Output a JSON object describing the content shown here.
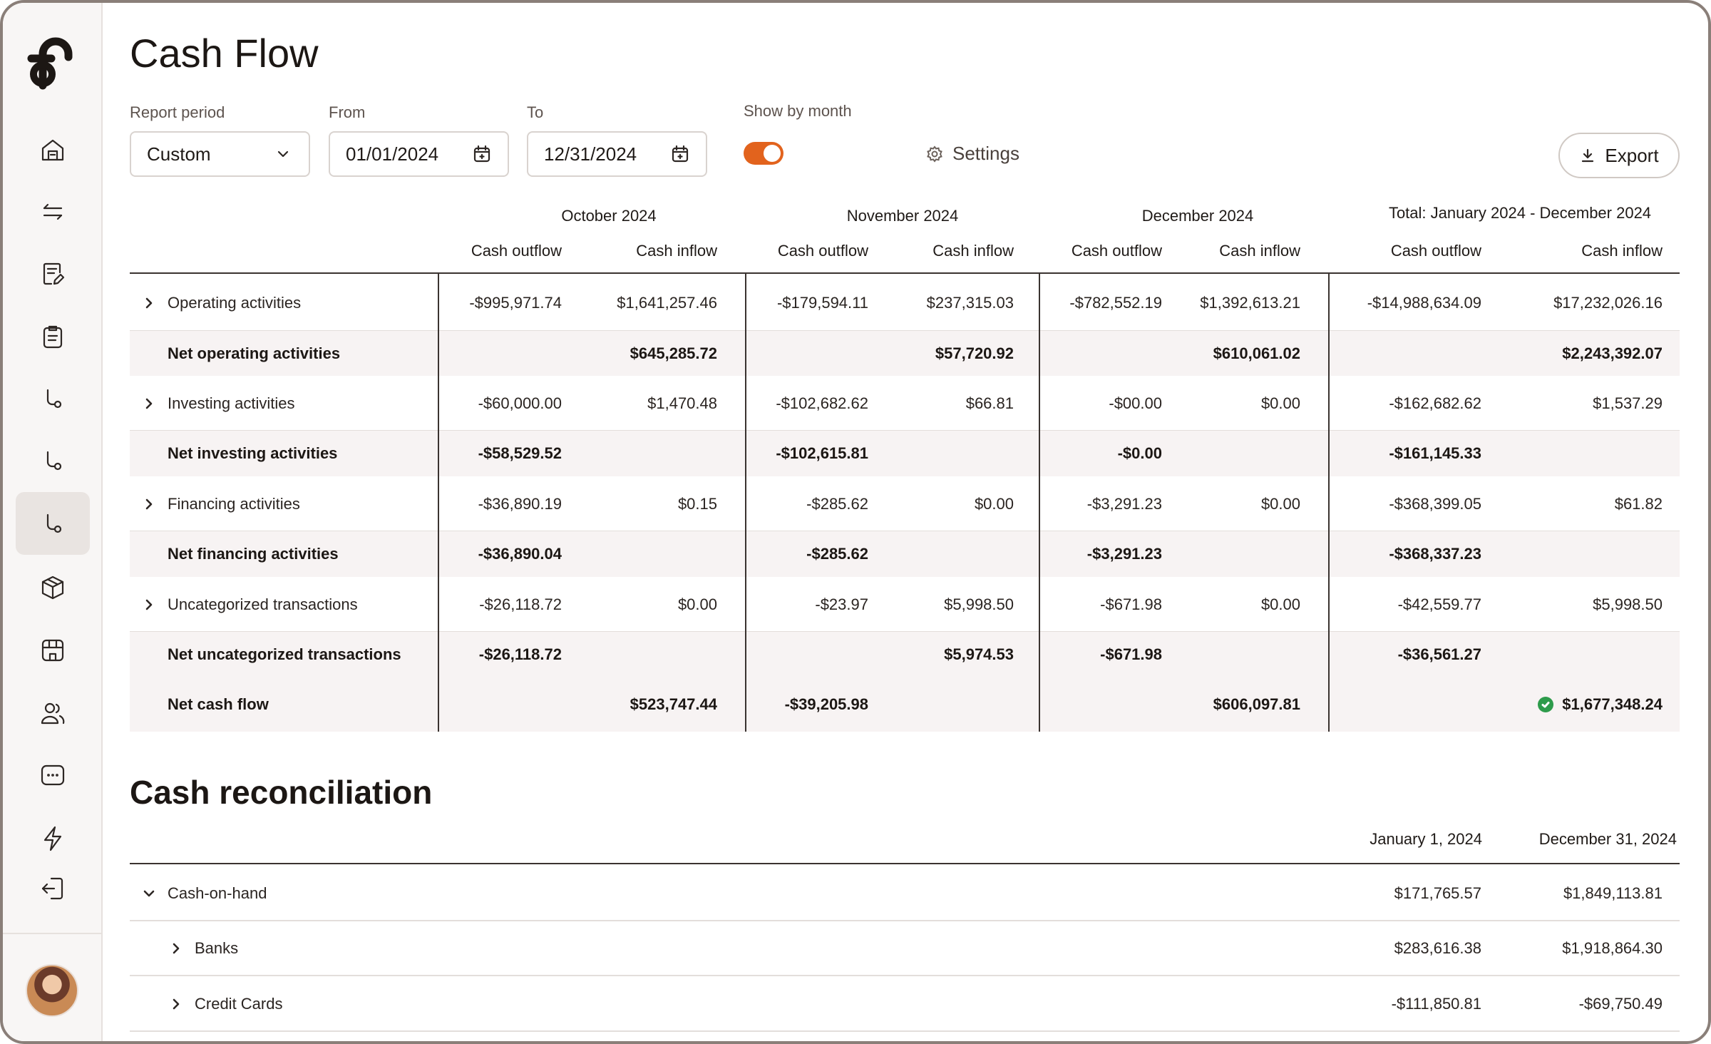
{
  "page": {
    "title": "Cash Flow"
  },
  "filters": {
    "report_period_label": "Report period",
    "report_period_value": "Custom",
    "from_label": "From",
    "from_value": "01/01/2024",
    "to_label": "To",
    "to_value": "12/31/2024",
    "show_by_month_label": "Show by month",
    "show_by_month_on": true
  },
  "toolbar": {
    "settings_label": "Settings",
    "export_label": "Export"
  },
  "colors": {
    "accent": "#e2631d",
    "success": "#2e9b4b"
  },
  "sidebar": {
    "items": [
      {
        "icon": "home-icon"
      },
      {
        "icon": "transfer-arrows-icon"
      },
      {
        "icon": "receipt-edit-icon"
      },
      {
        "icon": "clipboard-icon"
      },
      {
        "icon": "flow-icon"
      },
      {
        "icon": "flow-icon"
      },
      {
        "icon": "flow-icon",
        "active": true
      },
      {
        "icon": "box-icon"
      },
      {
        "icon": "storefront-icon"
      },
      {
        "icon": "users-icon"
      },
      {
        "icon": "chat-bubble-icon"
      },
      {
        "icon": "lightning-icon"
      },
      {
        "icon": "logout-icon"
      }
    ]
  },
  "cash_flow": {
    "groups": [
      "October 2024",
      "November 2024",
      "December 2024",
      "Total: January 2024 - December 2024"
    ],
    "col_outflow": "Cash outflow",
    "col_inflow": "Cash inflow",
    "rows": [
      {
        "label": "Operating activities",
        "expandable": true,
        "values": [
          "-$995,971.74",
          "$1,641,257.46",
          "-$179,594.11",
          "$237,315.03",
          "-$782,552.19",
          "$1,392,613.21",
          "-$14,988,634.09",
          "$17,232,026.16"
        ]
      },
      {
        "label": "Net operating activities",
        "net": true,
        "values": [
          "",
          "$645,285.72",
          "",
          "$57,720.92",
          "",
          "$610,061.02",
          "",
          "$2,243,392.07"
        ]
      },
      {
        "label": "Investing activities",
        "expandable": true,
        "values": [
          "-$60,000.00",
          "$1,470.48",
          "-$102,682.62",
          "$66.81",
          "-$00.00",
          "$0.00",
          "-$162,682.62",
          "$1,537.29"
        ]
      },
      {
        "label": "Net investing activities",
        "net": true,
        "values": [
          "-$58,529.52",
          "",
          "-$102,615.81",
          "",
          "-$0.00",
          "",
          "-$161,145.33",
          ""
        ]
      },
      {
        "label": "Financing activities",
        "expandable": true,
        "values": [
          "-$36,890.19",
          "$0.15",
          "-$285.62",
          "$0.00",
          "-$3,291.23",
          "$0.00",
          "-$368,399.05",
          "$61.82"
        ]
      },
      {
        "label": "Net financing activities",
        "net": true,
        "values": [
          "-$36,890.04",
          "",
          "-$285.62",
          "",
          "-$3,291.23",
          "",
          "-$368,337.23",
          ""
        ]
      },
      {
        "label": "Uncategorized transactions",
        "expandable": true,
        "values": [
          "-$26,118.72",
          "$0.00",
          "-$23.97",
          "$5,998.50",
          "-$671.98",
          "$0.00",
          "-$42,559.77",
          "$5,998.50"
        ]
      },
      {
        "label": "Net uncategorized transactions",
        "net": true,
        "values": [
          "-$26,118.72",
          "",
          "",
          "$5,974.53",
          "-$671.98",
          "",
          "-$36,561.27",
          ""
        ]
      },
      {
        "label": "Net cash flow",
        "net": true,
        "values": [
          "",
          "$523,747.44",
          "-$39,205.98",
          "",
          "",
          "$606,097.81",
          "",
          "$1,677,348.24"
        ],
        "check_last": true
      }
    ]
  },
  "reconciliation": {
    "title": "Cash reconciliation",
    "col_start": "January 1, 2024",
    "col_end": "December 31, 2024",
    "rows": [
      {
        "label": "Cash-on-hand",
        "expanded": true,
        "indent": 0,
        "start": "$171,765.57",
        "end": "$1,849,113.81"
      },
      {
        "label": "Banks",
        "expanded": false,
        "indent": 1,
        "start": "$283,616.38",
        "end": "$1,918,864.30"
      },
      {
        "label": "Credit Cards",
        "expanded": false,
        "indent": 1,
        "start": "-$111,850.81",
        "end": "-$69,750.49"
      }
    ]
  }
}
